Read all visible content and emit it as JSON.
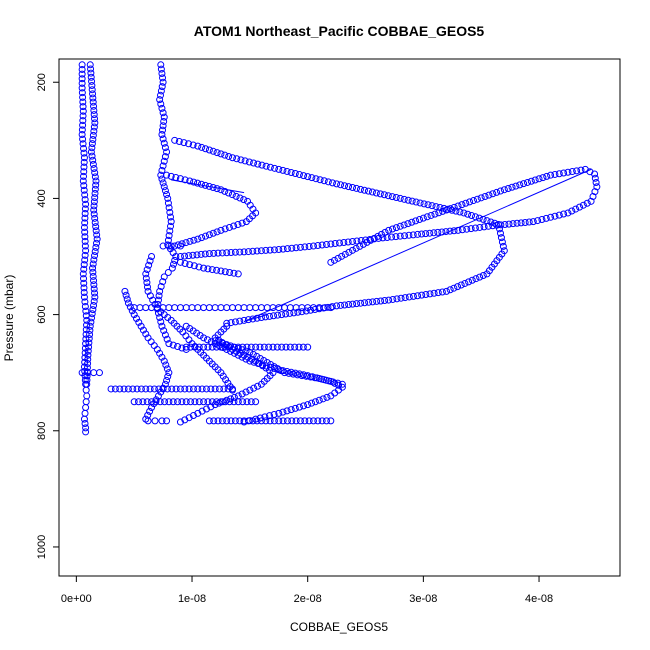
{
  "chart_data": {
    "type": "scatter",
    "title": "ATOM1 Northeast_Pacific COBBAE_GEOS5",
    "xlabel": "COBBAE_GEOS5",
    "ylabel": "Pressure (mbar)",
    "xlim": [
      -1.5e-09,
      4.7e-08
    ],
    "ylim": [
      1050,
      160
    ],
    "y_reversed": true,
    "x_ticks": [
      {
        "value": 0,
        "label": "0e+00"
      },
      {
        "value": 1e-08,
        "label": "1e-08"
      },
      {
        "value": 2e-08,
        "label": "2e-08"
      },
      {
        "value": 3e-08,
        "label": "3e-08"
      },
      {
        "value": 4e-08,
        "label": "4e-08"
      }
    ],
    "y_ticks": [
      {
        "value": 200,
        "label": "200"
      },
      {
        "value": 400,
        "label": "400"
      },
      {
        "value": 600,
        "label": "600"
      },
      {
        "value": 800,
        "label": "800"
      },
      {
        "value": 1000,
        "label": "1000"
      }
    ],
    "marker": "open-circle",
    "series_color": "#0000ff",
    "grid": false,
    "series": [
      {
        "name": "",
        "style": "points",
        "x": [
          5e-10,
          5e-10,
          6e-10,
          5e-10,
          7e-10,
          6e-10,
          8e-10,
          7e-10,
          8e-10,
          6e-10,
          7e-10,
          9e-10,
          8e-10,
          7e-10,
          8e-10,
          9e-10,
          8e-10,
          7e-10,
          8e-10,
          8e-10
        ],
        "y": [
          170,
          210,
          250,
          290,
          330,
          370,
          410,
          450,
          490,
          530,
          570,
          610,
          650,
          690,
          720,
          740,
          760,
          780,
          795,
          802
        ]
      },
      {
        "name": "",
        "style": "points",
        "x": [
          1.2e-09,
          1.4e-09,
          1.6e-09,
          1.3e-09,
          1.7e-09,
          1.5e-09,
          1.8e-09,
          1.4e-09,
          1.6e-09,
          1.2e-09,
          1e-09,
          9e-10
        ],
        "y": [
          170,
          220,
          270,
          320,
          370,
          420,
          470,
          520,
          570,
          620,
          670,
          720
        ]
      },
      {
        "name": "",
        "style": "points",
        "x": [
          7.3e-09,
          7.5e-09,
          7.2e-09,
          7.6e-09,
          7.4e-09,
          7.8e-09,
          7.3e-09,
          7.9e-09,
          8.2e-09,
          7.9e-09,
          8.6e-09,
          8.3e-09,
          7.6e-09,
          7.2e-09,
          7e-09,
          7.4e-09,
          8e-09,
          9.5e-09
        ],
        "y": [
          170,
          200,
          230,
          260,
          290,
          320,
          360,
          400,
          440,
          480,
          500,
          520,
          535,
          560,
          590,
          620,
          650,
          660
        ]
      },
      {
        "name": "",
        "style": "points",
        "x": [
          8.5e-09,
          1.05e-08,
          1.35e-08,
          1.75e-08,
          2.25e-08,
          2.8e-08,
          3.35e-08,
          3.65e-08,
          3.7e-08,
          3.55e-08,
          3.2e-08,
          2.7e-08,
          2.25e-08,
          1.95e-08,
          1.6e-08,
          1.3e-08
        ],
        "y": [
          300,
          310,
          330,
          350,
          375,
          400,
          425,
          445,
          490,
          530,
          560,
          575,
          585,
          595,
          605,
          615
        ]
      },
      {
        "name": "",
        "style": "points",
        "x": [
          7.8e-09,
          9.8e-09,
          1.25e-08,
          1.48e-08,
          1.55e-08,
          1.47e-08,
          1.25e-08,
          1.05e-08,
          8.8e-09,
          8.2e-09
        ],
        "y": [
          360,
          370,
          385,
          405,
          425,
          440,
          455,
          470,
          480,
          482
        ]
      },
      {
        "name": "",
        "style": "points",
        "x": [
          9e-09,
          1.15e-08,
          1.45e-08,
          1.75e-08,
          2.05e-08,
          2.35e-08,
          2.65e-08,
          2.95e-08,
          3.3e-08,
          3.6e-08,
          3.95e-08,
          4.25e-08,
          4.45e-08,
          4.5e-08,
          4.48e-08,
          4.4e-08,
          4.1e-08,
          3.7e-08,
          3.2e-08,
          2.7e-08,
          2.2e-08
        ],
        "y": [
          500,
          495,
          492,
          488,
          482,
          475,
          468,
          462,
          455,
          447,
          440,
          425,
          405,
          380,
          358,
          350,
          360,
          385,
          420,
          455,
          510
        ]
      },
      {
        "name": "",
        "style": "points",
        "x": [
          4.2e-09,
          4.5e-09,
          5e-09,
          5.6e-09,
          6.2e-09,
          7e-09,
          7.6e-09,
          8e-09,
          7.7e-09,
          7.1e-09,
          6.5e-09,
          6e-09
        ],
        "y": [
          560,
          580,
          600,
          620,
          640,
          660,
          680,
          700,
          720,
          740,
          760,
          780
        ]
      },
      {
        "name": "",
        "style": "points",
        "x": [
          6.5e-09,
          6e-09,
          6.2e-09,
          7e-09,
          8.2e-09,
          9.2e-09,
          1e-08,
          1.1e-08,
          1.25e-08,
          1.35e-08
        ],
        "y": [
          500,
          530,
          560,
          590,
          610,
          630,
          650,
          670,
          700,
          730
        ]
      },
      {
        "name": "",
        "style": "points",
        "x": [
          9.5e-09,
          1.1e-08,
          1.3e-08,
          1.5e-08,
          1.75e-08,
          2e-08,
          2.2e-08,
          2.3e-08,
          2.2e-08,
          2e-08,
          1.75e-08,
          1.55e-08,
          1.45e-08
        ],
        "y": [
          620,
          640,
          660,
          680,
          695,
          705,
          715,
          725,
          740,
          755,
          770,
          780,
          785
        ]
      },
      {
        "name": "",
        "style": "points",
        "x": [
          1.3e-08,
          1.2e-08,
          1.35e-08,
          1.55e-08,
          1.7e-08,
          1.6e-08,
          1.4e-08,
          1.2e-08,
          1.05e-08,
          9e-09
        ],
        "y": [
          620,
          640,
          660,
          680,
          700,
          720,
          740,
          755,
          770,
          785
        ]
      },
      {
        "name": "",
        "style": "points",
        "x": [
          5e-09,
          6e-09,
          7e-09,
          8e-09,
          9e-09,
          1e-08,
          1.1e-08,
          1.2e-08,
          1.3e-08,
          1.4e-08,
          1.5e-08,
          1.6e-08,
          1.7e-08,
          1.8e-08,
          1.9e-08,
          2e-08,
          2.1e-08,
          2.2e-08
        ],
        "y": [
          588,
          588,
          588,
          588,
          588,
          588,
          588,
          588,
          588,
          588,
          588,
          588,
          588,
          588,
          588,
          588,
          588,
          588
        ]
      },
      {
        "name": "",
        "style": "points",
        "x": [
          9.5e-09,
          1.1e-08,
          1.25e-08,
          1.4e-08,
          1.55e-08,
          1.7e-08,
          1.85e-08,
          2e-08
        ],
        "y": [
          656,
          656,
          656,
          656,
          656,
          656,
          656,
          656
        ]
      },
      {
        "name": "",
        "style": "points",
        "x": [
          3e-09,
          4.5e-09,
          6e-09,
          7.5e-09,
          9e-09,
          1.05e-08,
          1.2e-08,
          1.35e-08
        ],
        "y": [
          728,
          728,
          728,
          728,
          728,
          728,
          728,
          728
        ]
      },
      {
        "name": "",
        "style": "points",
        "x": [
          5e-09,
          6.5e-09,
          8e-09,
          9.5e-09,
          1.1e-08,
          1.25e-08,
          1.4e-08,
          1.55e-08
        ],
        "y": [
          750,
          750,
          750,
          750,
          750,
          750,
          750,
          750
        ]
      },
      {
        "name": "",
        "style": "points",
        "x": [
          1.15e-08,
          1.3e-08,
          1.45e-08,
          1.6e-08,
          1.75e-08,
          1.9e-08,
          2.05e-08,
          2.2e-08
        ],
        "y": [
          783,
          783,
          783,
          783,
          783,
          783,
          783,
          783
        ]
      },
      {
        "name": "",
        "style": "points",
        "x": [
          6.2e-09,
          6.8e-09,
          7.4e-09,
          7.8e-09
        ],
        "y": [
          783,
          783,
          783,
          783
        ]
      },
      {
        "name": "",
        "style": "points",
        "x": [
          5e-10,
          1e-09,
          1.5e-09,
          2e-09
        ],
        "y": [
          700,
          700,
          700,
          700
        ]
      },
      {
        "name": "",
        "style": "points",
        "x": [
          7.5e-09,
          8e-09,
          8.5e-09,
          9e-09
        ],
        "y": [
          482,
          482,
          482,
          482
        ]
      },
      {
        "name": "",
        "style": "points",
        "x": [
          1.2e-08,
          1.5e-08,
          1.8e-08,
          2.1e-08,
          2.3e-08
        ],
        "y": [
          645,
          665,
          700,
          710,
          720
        ]
      },
      {
        "name": "",
        "style": "points",
        "x": [
          9e-09,
          1.1e-08,
          1.4e-08
        ],
        "y": [
          510,
          520,
          530
        ]
      },
      {
        "name": "",
        "style": "line",
        "x": [
          8.2e-09,
          1.45e-08
        ],
        "y": [
          368,
          390
        ]
      },
      {
        "name": "",
        "style": "line",
        "x": [
          4.45e-08,
          1.45e-08
        ],
        "y": [
          350,
          612
        ]
      },
      {
        "name": "",
        "style": "line",
        "x": [
          1.45e-08,
          1.65e-08
        ],
        "y": [
          612,
          600
        ]
      }
    ]
  }
}
